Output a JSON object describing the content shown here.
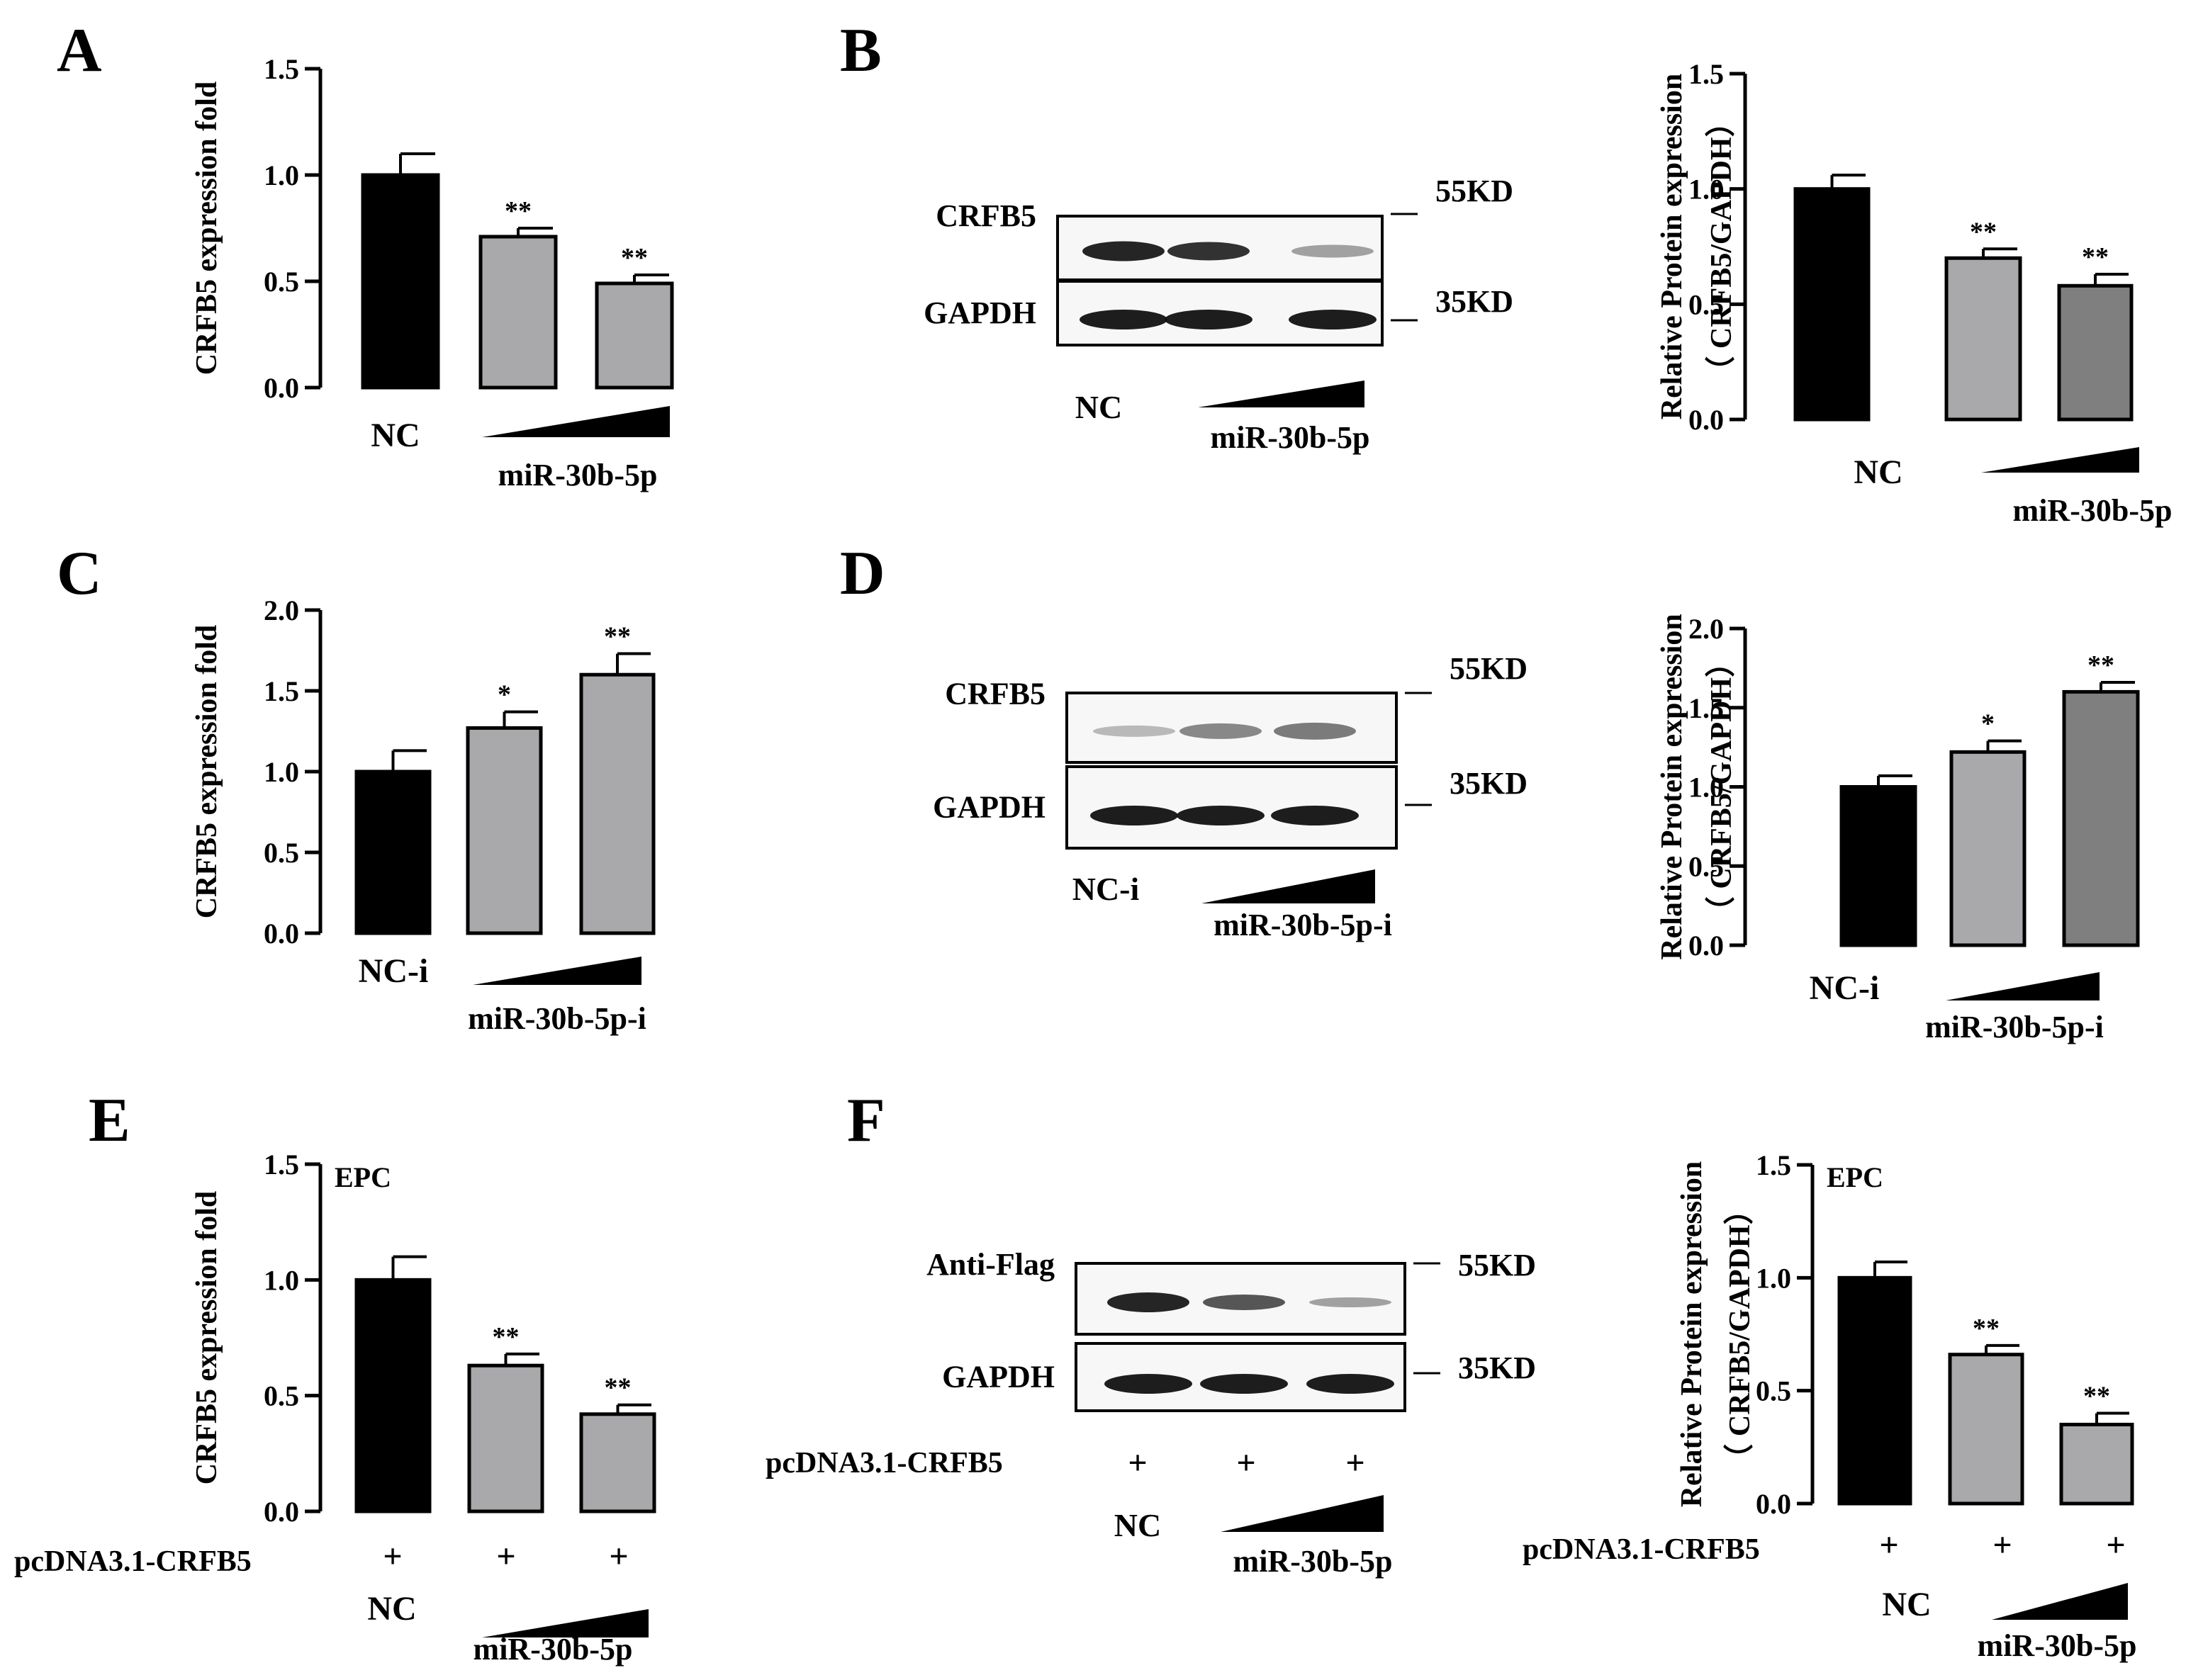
{
  "colors": {
    "black": "#000000",
    "light_gray": "#a9a9ac",
    "dark_gray": "#7f7f7f",
    "axis": "#000000"
  },
  "panels": {
    "A": {
      "letter": "A"
    },
    "B": {
      "letter": "B",
      "blot": {
        "bands": [
          "CRFB5",
          "GAPDH"
        ],
        "markers": [
          "55KD",
          "35KD"
        ],
        "lanes": [
          "NC"
        ],
        "gradient": "miR-30b-5p"
      }
    },
    "C": {
      "letter": "C"
    },
    "D": {
      "letter": "D",
      "blot": {
        "bands": [
          "CRFB5",
          "GAPDH"
        ],
        "markers": [
          "55KD",
          "35KD"
        ],
        "lanes": [
          "NC-i"
        ],
        "gradient": "miR-30b-5p-i"
      }
    },
    "E": {
      "letter": "E"
    },
    "F": {
      "letter": "F",
      "blot": {
        "bands": [
          "Anti-Flag",
          "GAPDH"
        ],
        "markers": [
          "55KD",
          "35KD"
        ],
        "row_label": "pcDNA3.1-CRFB5",
        "row_signs": [
          "+",
          "+",
          "+"
        ],
        "lanes": [
          "NC"
        ],
        "gradient": "miR-30b-5p"
      }
    }
  },
  "chart_data": [
    {
      "panel": "A",
      "type": "bar",
      "categories": [
        "NC",
        "miR-30b-5p",
        "miR-30b-5p"
      ],
      "values": [
        1.0,
        0.71,
        0.49
      ],
      "errors": [
        0.1,
        0.04,
        0.04
      ],
      "significance": [
        "",
        "**",
        "**"
      ],
      "colors": [
        "#000000",
        "#a9a9ac",
        "#a9a9ac"
      ],
      "ylabel": "CRFB5 expression fold",
      "ylim": [
        0,
        1.5
      ],
      "yticks": [
        "0.0",
        "0.5",
        "1.0",
        "1.5"
      ],
      "x_labels": {
        "control": "NC",
        "treatment": "miR-30b-5p"
      }
    },
    {
      "panel": "B",
      "type": "bar",
      "categories": [
        "NC",
        "miR-30b-5p",
        "miR-30b-5p"
      ],
      "values": [
        1.0,
        0.7,
        0.58
      ],
      "errors": [
        0.06,
        0.04,
        0.05
      ],
      "significance": [
        "",
        "**",
        "**"
      ],
      "colors": [
        "#000000",
        "#a9a9ac",
        "#7f7f7f"
      ],
      "ylabel": "Relative Protein expression",
      "ylabel2": "（ CRFB5/GAPDH）",
      "ylim": [
        0,
        1.5
      ],
      "yticks": [
        "0.0",
        "0.5",
        "1.0",
        "1.5"
      ],
      "x_labels": {
        "control": "NC",
        "treatment": "miR-30b-5p"
      }
    },
    {
      "panel": "C",
      "type": "bar",
      "categories": [
        "NC-i",
        "miR-30b-5p-i",
        "miR-30b-5p-i"
      ],
      "values": [
        1.0,
        1.27,
        1.6
      ],
      "errors": [
        0.13,
        0.1,
        0.13
      ],
      "significance": [
        "",
        "*",
        "**"
      ],
      "colors": [
        "#000000",
        "#a9a9ac",
        "#a9a9ac"
      ],
      "ylabel": "CRFB5 expression fold",
      "ylim": [
        0,
        2.0
      ],
      "yticks": [
        "0.0",
        "0.5",
        "1.0",
        "1.5",
        "2.0"
      ],
      "x_labels": {
        "control": "NC-i",
        "treatment": "miR-30b-5p-i"
      }
    },
    {
      "panel": "D",
      "type": "bar",
      "categories": [
        "NC-i",
        "miR-30b-5p-i",
        "miR-30b-5p-i"
      ],
      "values": [
        1.0,
        1.22,
        1.6
      ],
      "errors": [
        0.07,
        0.07,
        0.06
      ],
      "significance": [
        "",
        "*",
        "**"
      ],
      "colors": [
        "#000000",
        "#a9a9ac",
        "#7f7f7f"
      ],
      "ylabel": "Relative Protein expression",
      "ylabel2": "（ CRFB5/GAPDH）",
      "ylim": [
        0,
        2.0
      ],
      "yticks": [
        "0.0",
        "0.5",
        "1.0",
        "1.5",
        "2.0"
      ],
      "x_labels": {
        "control": "NC-i",
        "treatment": "miR-30b-5p-i"
      }
    },
    {
      "panel": "E",
      "type": "bar",
      "categories": [
        "NC",
        "miR-30b-5p",
        "miR-30b-5p"
      ],
      "values": [
        1.0,
        0.63,
        0.42
      ],
      "errors": [
        0.1,
        0.05,
        0.04
      ],
      "significance": [
        "",
        "**",
        "**"
      ],
      "colors": [
        "#000000",
        "#a9a9ac",
        "#a9a9ac"
      ],
      "ylabel": "CRFB5 expression fold",
      "ylim": [
        0,
        1.5
      ],
      "yticks": [
        "0.0",
        "0.5",
        "1.0",
        "1.5"
      ],
      "annotation": "EPC",
      "row_label": "pcDNA3.1-CRFB5",
      "row_signs": [
        "+",
        "+",
        "+"
      ],
      "x_labels": {
        "control": "NC",
        "treatment": "miR-30b-5p"
      }
    },
    {
      "panel": "F",
      "type": "bar",
      "categories": [
        "NC",
        "miR-30b-5p",
        "miR-30b-5p"
      ],
      "values": [
        1.0,
        0.66,
        0.35
      ],
      "errors": [
        0.07,
        0.04,
        0.05
      ],
      "significance": [
        "",
        "**",
        "**"
      ],
      "colors": [
        "#000000",
        "#a9a9ac",
        "#a9a9ac"
      ],
      "ylabel": "Relative Protein expression",
      "ylabel2": "（ CRFB5/GAPDH）",
      "ylim": [
        0,
        1.5
      ],
      "yticks": [
        "0.0",
        "0.5",
        "1.0",
        "1.5"
      ],
      "annotation": "EPC",
      "row_label": "pcDNA3.1-CRFB5",
      "row_signs": [
        "+",
        "+",
        "+"
      ],
      "x_labels": {
        "control": "NC",
        "treatment": "miR-30b-5p"
      }
    }
  ]
}
